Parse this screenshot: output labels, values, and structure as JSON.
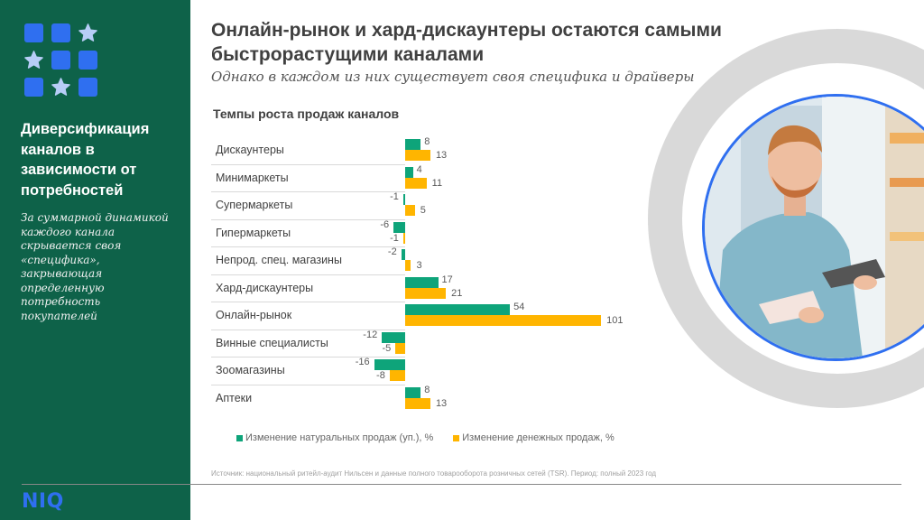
{
  "sidebar": {
    "title": "Диверсификация каналов в зависимости от потребностей",
    "description": "За суммарной динамикой каждого канала скрывается своя «специфика», закрывающая определенную потребность покупателей",
    "logo_grid": [
      "square",
      "square",
      "star",
      "star",
      "square",
      "square",
      "square",
      "star",
      "square"
    ],
    "brand": "NIQ"
  },
  "header": {
    "title": "Онлайн-рынок и хард-дискаунтеры остаются самыми быстрорастущими каналами",
    "subtitle": "Однако в каждом из них существует своя специфика и драйверы"
  },
  "colors": {
    "sidebar_bg": "#0e6249",
    "brand_blue": "#2f6ff0",
    "series_volume": "#0ea47a",
    "series_value": "#ffb500",
    "ring": "#d9d9d9"
  },
  "chart_data": {
    "type": "bar",
    "orientation": "horizontal",
    "title": "Темпы роста продаж каналов",
    "categories": [
      "Дискаунтеры",
      "Минимаркеты",
      "Супермаркеты",
      "Гипермаркеты",
      "Непрод. спец.  магазины",
      "Хард-дискаунтеры",
      "Онлайн-рынок",
      "Винные специалисты",
      "Зоомагазины",
      "Аптеки"
    ],
    "series": [
      {
        "name": "Изменение натуральных продаж (уп.), %",
        "color": "#0ea47a",
        "values": [
          8,
          4,
          -1,
          -6,
          -2,
          17,
          54,
          -12,
          -16,
          8
        ]
      },
      {
        "name": "Изменение денежных продаж, %",
        "color": "#ffb500",
        "values": [
          13,
          11,
          5,
          -1,
          3,
          21,
          101,
          -5,
          -8,
          13
        ]
      }
    ],
    "xlim": [
      -20,
      105
    ],
    "legend": "bottom",
    "grid": false
  },
  "source": "Источник: национальный ритейл-аудит Нильсен и данные полного товарооборота розничных сетей (TSR). Период: полный 2023 год",
  "photo": {
    "description": "man-holding-frozen-food-in-store"
  }
}
